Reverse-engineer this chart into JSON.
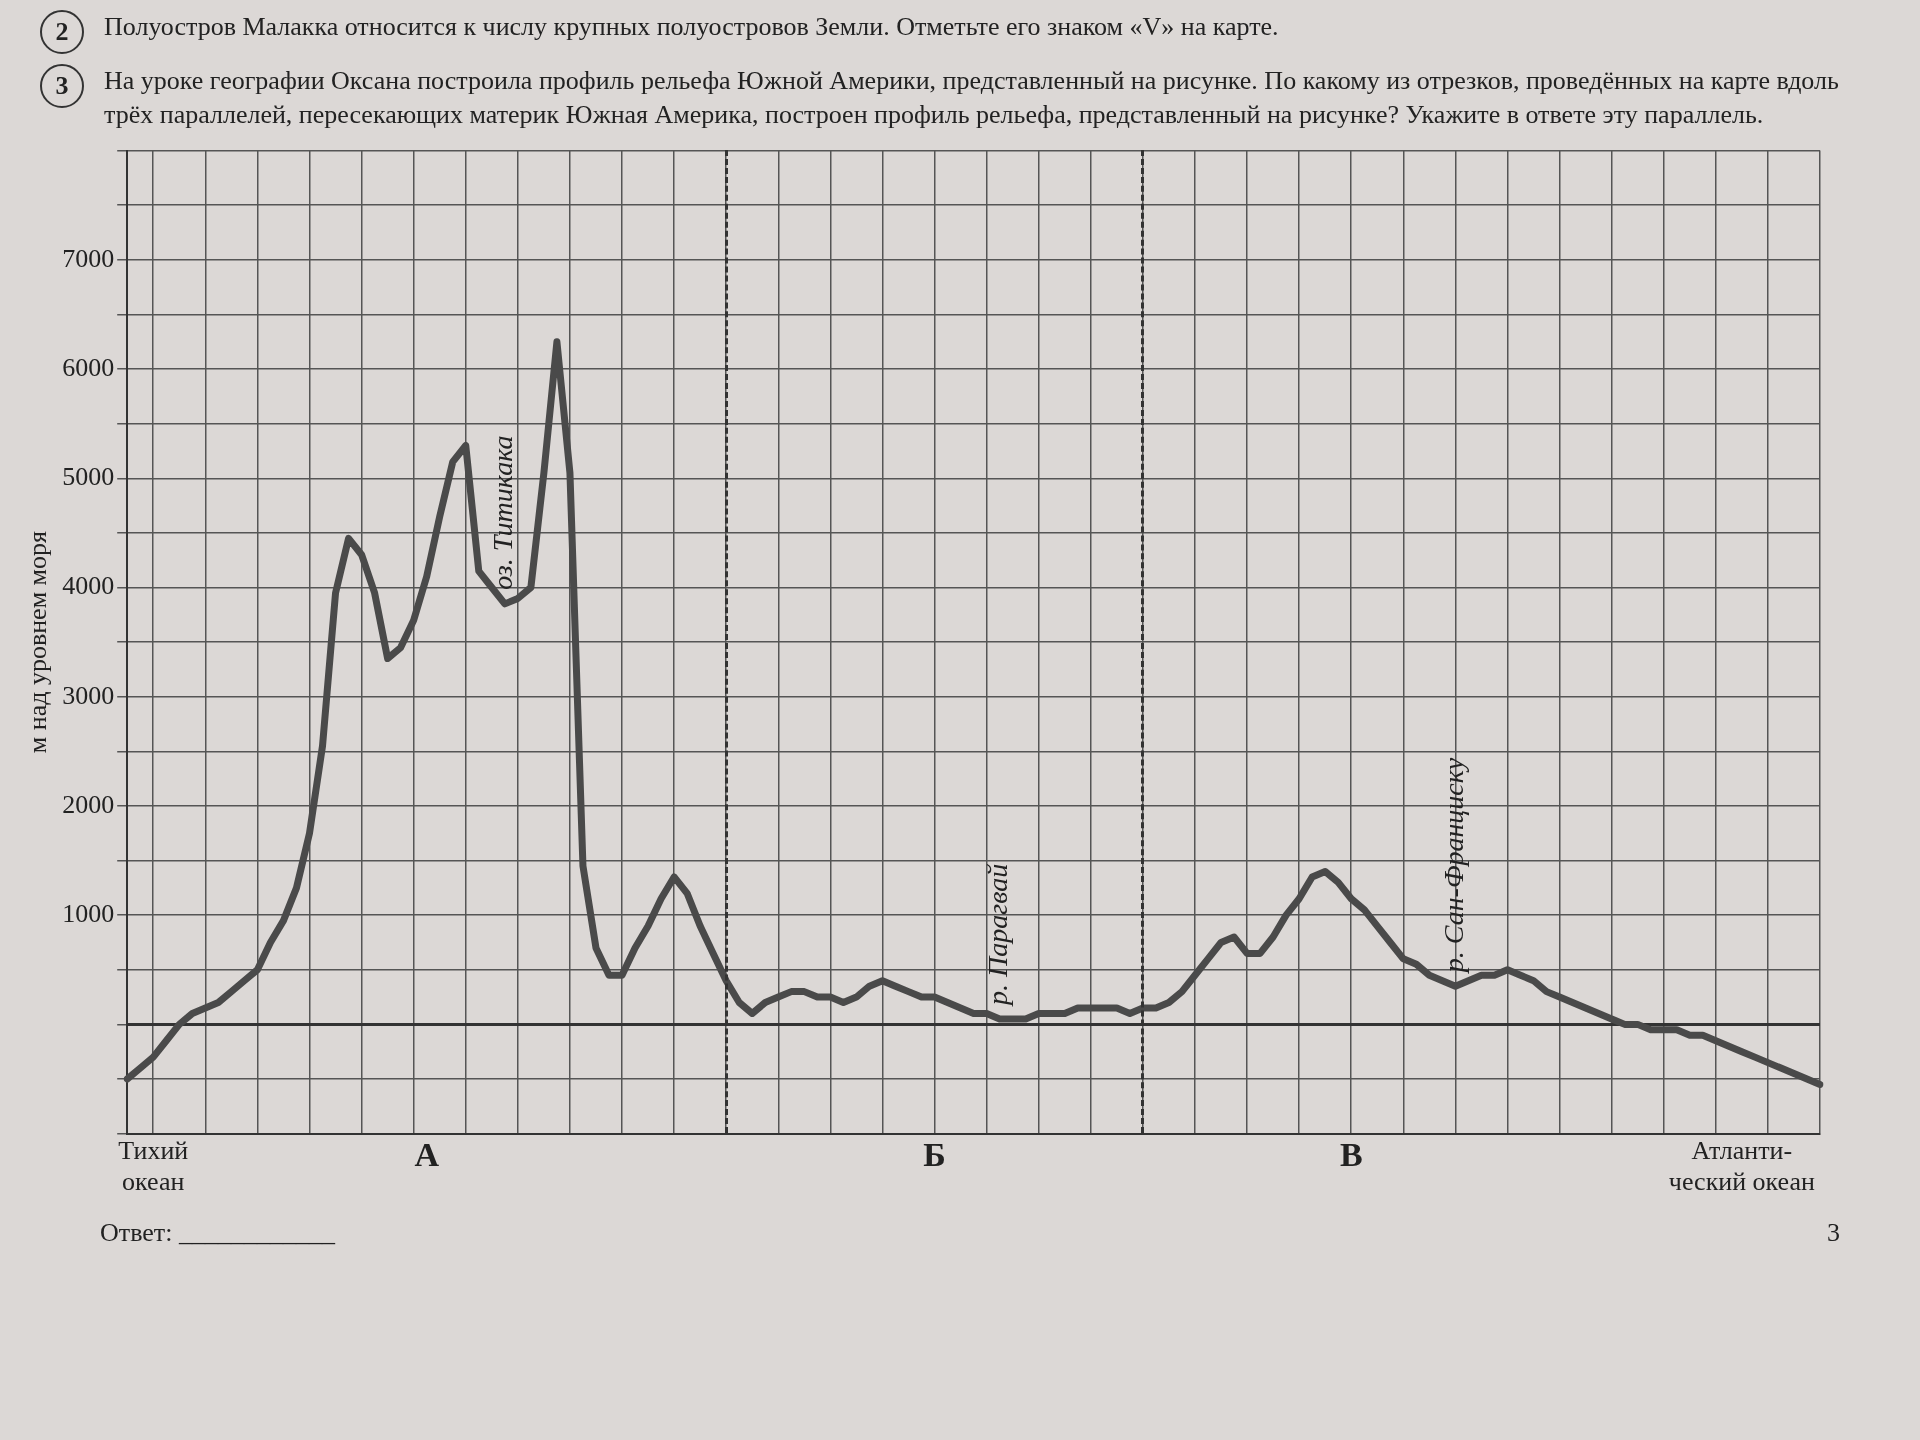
{
  "chart_data": {
    "type": "line",
    "title": "На уроке географии Оксана построила профиль рельефа Южной Америки, представленный на рисунке. По какому из отрезков, проведённых на карте вдоль трёх параллелей, пересекающих материк Южная Америка, построен профиль рельефа, представленный на рисунке? Укажите в ответе эту параллель.",
    "ylabel": "м над уровнем моря",
    "categories": [
      null,
      null,
      "Тихий\nокеан",
      null,
      null,
      null,
      null,
      null,
      null,
      null,
      null,
      null,
      null,
      null,
      null,
      null,
      null,
      null,
      null,
      null,
      null,
      null,
      null,
      "А",
      null,
      null,
      null,
      null,
      null,
      null,
      null,
      null,
      null,
      null,
      null,
      null,
      null,
      null,
      null,
      null,
      null,
      null,
      null,
      null,
      null,
      null,
      null,
      null,
      null,
      null,
      null,
      null,
      null,
      null,
      null,
      null,
      null,
      null,
      null,
      null,
      null,
      null,
      "Б",
      null,
      null,
      null,
      null,
      null,
      null,
      null,
      null,
      null,
      null,
      null,
      null,
      null,
      null,
      null,
      null,
      null,
      null,
      null,
      null,
      null,
      null,
      null,
      null,
      null,
      null,
      null,
      null,
      null,
      null,
      null,
      "В",
      null,
      null,
      null,
      null,
      null,
      null,
      null,
      null,
      null,
      null,
      null,
      null,
      null,
      null,
      null,
      null,
      null,
      null,
      null,
      null,
      null,
      null,
      null,
      null,
      null,
      null,
      null,
      null,
      null,
      "Атланти-\nческий океан",
      null,
      null,
      null,
      null,
      null,
      null
    ],
    "series": [
      {
        "color": "#4a4a4a",
        "values": [
          -500,
          -400,
          -300,
          -150,
          0,
          100,
          150,
          200,
          300,
          400,
          500,
          750,
          950,
          1250,
          1750,
          2550,
          3950,
          4450,
          4300,
          3950,
          3350,
          3450,
          3700,
          4100,
          4650,
          5150,
          5300,
          4150,
          4000,
          3850,
          3900,
          4000,
          5050,
          6250,
          5050,
          1450,
          700,
          450,
          450,
          700,
          900,
          1150,
          1350,
          1200,
          900,
          650,
          400,
          200,
          100,
          200,
          250,
          300,
          300,
          250,
          250,
          200,
          250,
          350,
          400,
          350,
          300,
          250,
          250,
          200,
          150,
          100,
          100,
          50,
          50,
          50,
          100,
          100,
          100,
          150,
          150,
          150,
          150,
          100,
          150,
          150,
          200,
          300,
          450,
          600,
          750,
          800,
          650,
          650,
          800,
          1000,
          1150,
          1350,
          1400,
          1300,
          1150,
          1050,
          900,
          750,
          600,
          550,
          450,
          400,
          350,
          400,
          450,
          450,
          500,
          450,
          400,
          300,
          250,
          200,
          150,
          100,
          50,
          0,
          0,
          -50,
          -50,
          -50,
          -100,
          -100,
          -150,
          -200,
          -250,
          -300,
          -350,
          -400,
          -450,
          -500,
          -550
        ]
      }
    ],
    "ylim": [
      -1000,
      8000
    ],
    "yticks": [
      {
        "value": -1000,
        "label": null
      },
      {
        "value": -500,
        "label": null
      },
      {
        "value": 0,
        "label": null
      },
      {
        "value": 500,
        "label": null
      },
      1000,
      {
        "value": 1500,
        "label": null
      },
      2000,
      {
        "value": 2500,
        "label": null
      },
      3000,
      {
        "value": 3500,
        "label": null
      },
      4000,
      {
        "value": 4500,
        "label": null
      },
      5000,
      {
        "value": 5500,
        "label": null
      },
      6000,
      {
        "value": 6500,
        "label": null
      },
      7000,
      {
        "value": 7500,
        "label": null
      },
      {
        "value": 8000,
        "label": null
      }
    ],
    "grid": true,
    "marker": "none",
    "line_style": "solid",
    "ref_lines": [
      {
        "axis": "y",
        "value": 0,
        "color": "#333333",
        "line_style": "solid"
      }
    ],
    "annotations": [
      "2",
      "Полуостров Малакка относится к числу крупных полуостровов Земли. Отметьте его знаком «V» на карте.",
      "3",
      {
        "text": "оз. Титикака",
        "y": 3850
      },
      {
        "text": "р. Парагвай",
        "y": 50
      },
      {
        "text": "р. Сан-Франциску",
        "y": 350
      },
      "Ответ: ____________",
      "3"
    ]
  }
}
